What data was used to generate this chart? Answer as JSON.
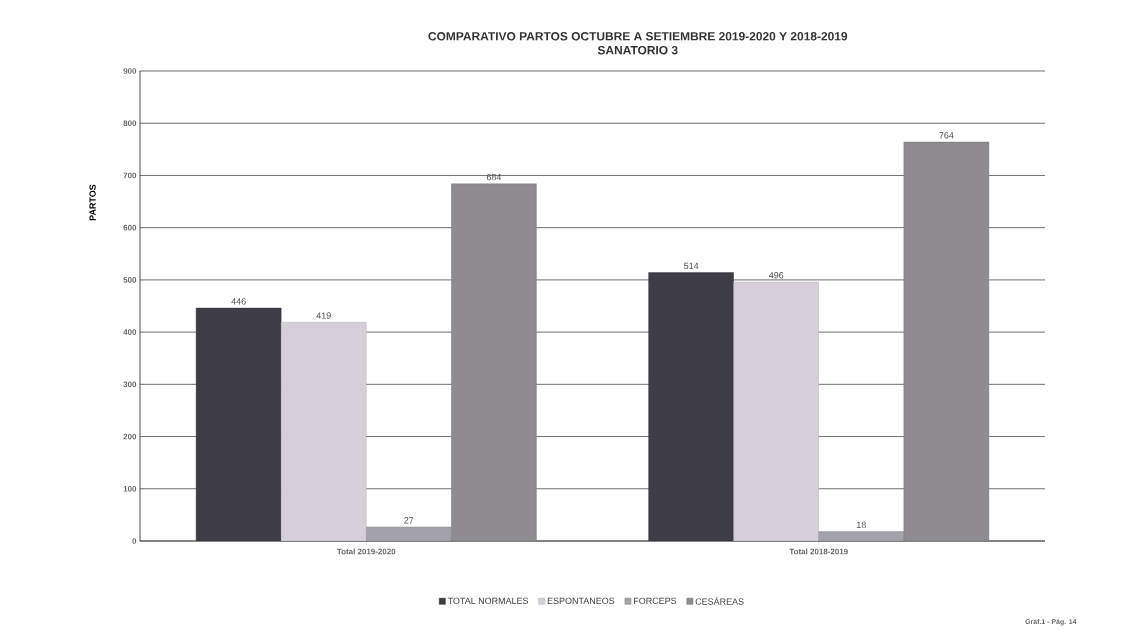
{
  "chart_data": {
    "type": "bar",
    "title": "COMPARATIVO PARTOS  OCTUBRE A SETIEMBRE 2019-2020  Y 2018-2019",
    "subtitle": "SANATORIO 3",
    "ylabel": "PARTOS",
    "categories": [
      "Total 2019-2020",
      "Total 2018-2019"
    ],
    "series": [
      {
        "name": "TOTAL NORMALES",
        "color": "#3e3c46",
        "values": [
          446,
          514
        ]
      },
      {
        "name": "ESPONTANEOS",
        "color": "#d6cfd9",
        "values": [
          419,
          496
        ]
      },
      {
        "name": "FORCEPS",
        "color": "#a3a2aa",
        "values": [
          27,
          18
        ]
      },
      {
        "name": "CESÁREAS",
        "color": "#8e8c91",
        "values": [
          684,
          764
        ]
      }
    ],
    "ylim": [
      0,
      900
    ],
    "yticks": [
      0,
      100,
      200,
      300,
      400,
      500,
      600,
      700,
      800,
      900
    ],
    "grid": "y",
    "legend": "bottom",
    "data_labels": true,
    "annotations": [
      "Graf.1 - Pág. 14"
    ]
  }
}
